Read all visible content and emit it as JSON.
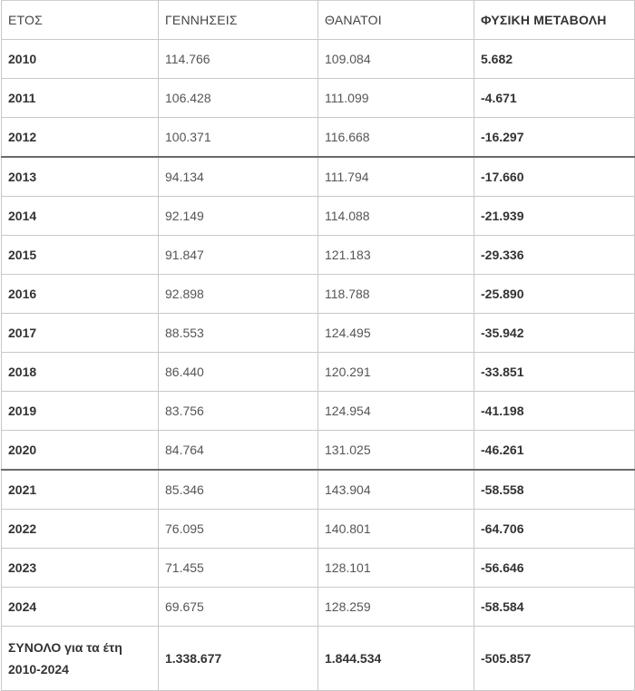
{
  "table": {
    "headers": [
      "ΕΤΟΣ",
      "ΓΕΝΝΗΣΕΙΣ",
      "ΘΑΝΑΤΟΙ",
      "ΦΥΣΙΚΗ ΜΕΤΑΒΟΛΗ"
    ],
    "rows": [
      {
        "year": "2010",
        "births": "114.766",
        "deaths": "109.084",
        "change": "5.682"
      },
      {
        "year": "2011",
        "births": "106.428",
        "deaths": "111.099",
        "change": "-4.671"
      },
      {
        "year": "2012",
        "births": "100.371",
        "deaths": "116.668",
        "change": "-16.297"
      },
      {
        "year": "2013",
        "births": "94.134",
        "deaths": "111.794",
        "change": "-17.660"
      },
      {
        "year": "2014",
        "births": "92.149",
        "deaths": "114.088",
        "change": "-21.939"
      },
      {
        "year": "2015",
        "births": "91.847",
        "deaths": "121.183",
        "change": "-29.336"
      },
      {
        "year": "2016",
        "births": "92.898",
        "deaths": "118.788",
        "change": "-25.890"
      },
      {
        "year": "2017",
        "births": "88.553",
        "deaths": "124.495",
        "change": "-35.942"
      },
      {
        "year": "2018",
        "births": "86.440",
        "deaths": "120.291",
        "change": "-33.851"
      },
      {
        "year": "2019",
        "births": "83.756",
        "deaths": "124.954",
        "change": "-41.198"
      },
      {
        "year": "2020",
        "births": "84.764",
        "deaths": "131.025",
        "change": "-46.261"
      },
      {
        "year": "2021",
        "births": "85.346",
        "deaths": "143.904",
        "change": "-58.558"
      },
      {
        "year": "2022",
        "births": "76.095",
        "deaths": "140.801",
        "change": "-64.706"
      },
      {
        "year": "2023",
        "births": "71.455",
        "deaths": "128.101",
        "change": "-56.646"
      },
      {
        "year": "2024",
        "births": "69.675",
        "deaths": "128.259",
        "change": "-58.584"
      }
    ],
    "total": {
      "label": "ΣΥΝΟΛΟ για τα έτη 2010-2024",
      "births": "1.338.677",
      "deaths": "1.844.534",
      "change": "-505.857"
    }
  }
}
